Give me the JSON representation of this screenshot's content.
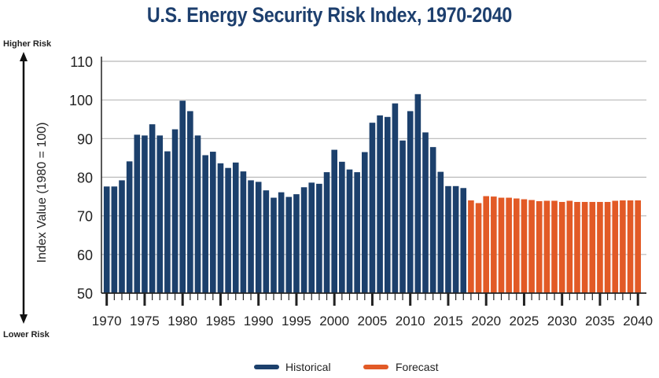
{
  "chart_data": {
    "type": "bar",
    "title": "U.S. Energy Security Risk Index, 1970-2040",
    "xlabel": "",
    "ylabel": "Index Value (1980 = 100)",
    "ylim": [
      50,
      110
    ],
    "yticks": [
      50,
      60,
      70,
      80,
      90,
      100,
      110
    ],
    "xlim": [
      1970,
      2040
    ],
    "xticks": [
      1970,
      1975,
      1980,
      1985,
      1990,
      1995,
      2000,
      2005,
      2010,
      2015,
      2020,
      2025,
      2030,
      2035,
      2040
    ],
    "grid": true,
    "annotations": {
      "top": "Higher Risk",
      "bottom": "Lower Risk"
    },
    "legend": {
      "placement": "bottom-center",
      "entries": [
        "Historical",
        "Forecast"
      ]
    },
    "colors": {
      "Historical": "#1c406c",
      "Forecast": "#e25a26"
    },
    "series": [
      {
        "name": "Historical",
        "x": [
          1970,
          1971,
          1972,
          1973,
          1974,
          1975,
          1976,
          1977,
          1978,
          1979,
          1980,
          1981,
          1982,
          1983,
          1984,
          1985,
          1986,
          1987,
          1988,
          1989,
          1990,
          1991,
          1992,
          1993,
          1994,
          1995,
          1996,
          1997,
          1998,
          1999,
          2000,
          2001,
          2002,
          2003,
          2004,
          2005,
          2006,
          2007,
          2008,
          2009,
          2010,
          2011,
          2012,
          2013,
          2014,
          2015,
          2016,
          2017
        ],
        "values": [
          77.6,
          77.6,
          79.2,
          84.1,
          91.0,
          90.8,
          93.7,
          90.8,
          86.7,
          92.4,
          99.8,
          97.1,
          90.8,
          85.7,
          86.6,
          83.6,
          82.4,
          83.8,
          81.5,
          79.2,
          78.8,
          76.6,
          74.7,
          76.1,
          74.9,
          75.6,
          77.4,
          78.6,
          78.3,
          81.3,
          87.1,
          84.0,
          82.0,
          81.3,
          86.5,
          94.1,
          96.0,
          95.6,
          99.1,
          89.5,
          97.1,
          101.5,
          91.6,
          87.8,
          81.4,
          77.7,
          77.7,
          77.2
        ]
      },
      {
        "name": "Forecast",
        "x": [
          2018,
          2019,
          2020,
          2021,
          2022,
          2023,
          2024,
          2025,
          2026,
          2027,
          2028,
          2029,
          2030,
          2031,
          2032,
          2033,
          2034,
          2035,
          2036,
          2037,
          2038,
          2039,
          2040
        ],
        "values": [
          74.0,
          73.3,
          75.1,
          75.0,
          74.7,
          74.7,
          74.5,
          74.3,
          74.1,
          73.8,
          73.9,
          73.9,
          73.6,
          73.9,
          73.6,
          73.6,
          73.6,
          73.6,
          73.6,
          73.9,
          74.0,
          74.0,
          74.0
        ]
      }
    ]
  }
}
